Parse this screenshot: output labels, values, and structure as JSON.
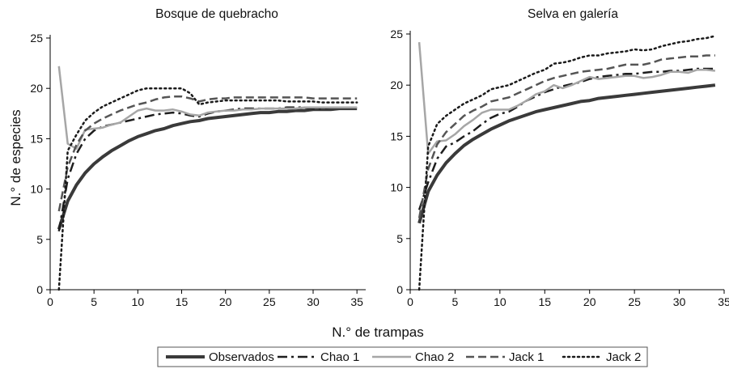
{
  "chart_data": {
    "type": "line",
    "xlabel": "N.° de trampas",
    "ylabel": "N.° de especies",
    "legend": {
      "placement": "bottom-center",
      "entries": [
        "Observados",
        "Chao 1",
        "Chao 2",
        "Jack 1",
        "Jack 2"
      ]
    },
    "grid": false,
    "series_styles": [
      {
        "name": "Observados",
        "color": "#3a3a3a",
        "dash": "solid",
        "weight": "thick"
      },
      {
        "name": "Chao 1",
        "color": "#1e1e1e",
        "dash": "dashdot",
        "weight": "medium"
      },
      {
        "name": "Chao 2",
        "color": "#a6a6a6",
        "dash": "solid",
        "weight": "medium"
      },
      {
        "name": "Jack 1",
        "color": "#555555",
        "dash": "dashed",
        "weight": "medium"
      },
      {
        "name": "Jack 2",
        "color": "#1a1a1a",
        "dash": "dotted",
        "weight": "medium"
      }
    ],
    "panels": [
      {
        "title": "Bosque de quebracho",
        "xlim": [
          0,
          36
        ],
        "ylim": [
          0,
          25
        ],
        "xticks": [
          0,
          5,
          10,
          15,
          20,
          25,
          30,
          35
        ],
        "yticks": [
          0,
          5,
          10,
          15,
          20,
          25
        ],
        "x": [
          1,
          2,
          3,
          4,
          5,
          6,
          7,
          8,
          9,
          10,
          11,
          12,
          13,
          14,
          15,
          16,
          17,
          18,
          19,
          20,
          21,
          22,
          23,
          24,
          25,
          26,
          27,
          28,
          29,
          30,
          31,
          32,
          33,
          34,
          35
        ],
        "series": [
          {
            "name": "Observados",
            "values": [
              6.0,
              8.8,
              10.4,
              11.6,
              12.5,
              13.2,
              13.8,
              14.3,
              14.8,
              15.2,
              15.5,
              15.8,
              16.0,
              16.3,
              16.5,
              16.7,
              16.8,
              17.0,
              17.1,
              17.2,
              17.3,
              17.4,
              17.5,
              17.6,
              17.6,
              17.7,
              17.7,
              17.8,
              17.8,
              17.9,
              17.9,
              17.9,
              18.0,
              18.0,
              18.0
            ]
          },
          {
            "name": "Chao 1",
            "values": [
              5.8,
              11.0,
              13.5,
              15.0,
              15.8,
              16.2,
              16.4,
              16.6,
              16.8,
              17.0,
              17.2,
              17.4,
              17.5,
              17.6,
              17.5,
              17.3,
              17.2,
              17.5,
              17.7,
              17.8,
              17.9,
              18.0,
              18.0,
              18.0,
              18.0,
              18.0,
              18.1,
              18.1,
              18.1,
              18.0,
              18.0,
              18.1,
              18.1,
              18.1,
              18.1
            ]
          },
          {
            "name": "Chao 2",
            "values": [
              22.2,
              14.5,
              14.0,
              15.9,
              16.0,
              16.1,
              16.4,
              16.6,
              17.2,
              17.8,
              18.0,
              17.8,
              17.8,
              17.9,
              17.7,
              17.4,
              17.3,
              17.6,
              17.7,
              17.8,
              17.8,
              17.9,
              17.9,
              18.0,
              18.0,
              18.0,
              18.0,
              18.0,
              18.1,
              18.1,
              18.1,
              18.1,
              18.1,
              18.1,
              18.1
            ]
          },
          {
            "name": "Jack 1",
            "values": [
              7.8,
              12.2,
              14.4,
              15.8,
              16.5,
              17.0,
              17.4,
              17.8,
              18.1,
              18.4,
              18.6,
              18.9,
              19.1,
              19.2,
              19.2,
              19.0,
              18.7,
              18.9,
              19.0,
              19.0,
              19.1,
              19.1,
              19.1,
              19.1,
              19.1,
              19.1,
              19.1,
              19.1,
              19.1,
              19.0,
              19.0,
              19.0,
              19.0,
              19.0,
              19.0
            ]
          },
          {
            "name": "Jack 2",
            "values": [
              0.0,
              13.8,
              15.4,
              16.8,
              17.6,
              18.2,
              18.6,
              19.0,
              19.4,
              19.8,
              20.0,
              20.0,
              20.0,
              20.0,
              20.0,
              19.5,
              18.4,
              18.6,
              18.7,
              18.8,
              18.8,
              18.8,
              18.8,
              18.8,
              18.8,
              18.8,
              18.7,
              18.7,
              18.7,
              18.7,
              18.6,
              18.6,
              18.6,
              18.6,
              18.6
            ]
          }
        ]
      },
      {
        "title": "Selva en galería",
        "xlim": [
          0,
          35
        ],
        "ylim": [
          0,
          25
        ],
        "xticks": [
          0,
          5,
          10,
          15,
          20,
          25,
          30,
          35
        ],
        "yticks": [
          0,
          5,
          10,
          15,
          20,
          25
        ],
        "x": [
          1,
          2,
          3,
          4,
          5,
          6,
          7,
          8,
          9,
          10,
          11,
          12,
          13,
          14,
          15,
          16,
          17,
          18,
          19,
          20,
          21,
          22,
          23,
          24,
          25,
          26,
          27,
          28,
          29,
          30,
          31,
          32,
          33,
          34
        ],
        "series": [
          {
            "name": "Observados",
            "values": [
              6.5,
              9.6,
              11.2,
              12.4,
              13.3,
              14.1,
              14.7,
              15.2,
              15.7,
              16.1,
              16.5,
              16.8,
              17.1,
              17.4,
              17.6,
              17.8,
              18.0,
              18.2,
              18.4,
              18.5,
              18.7,
              18.8,
              18.9,
              19.0,
              19.1,
              19.2,
              19.3,
              19.4,
              19.5,
              19.6,
              19.7,
              19.8,
              19.9,
              20.0
            ]
          },
          {
            "name": "Chao 1",
            "values": [
              7.8,
              10.5,
              12.8,
              14.0,
              14.4,
              15.0,
              15.5,
              16.2,
              16.8,
              17.2,
              17.4,
              17.9,
              18.5,
              18.9,
              19.3,
              19.6,
              19.9,
              20.1,
              20.3,
              20.6,
              20.8,
              20.9,
              21.0,
              21.1,
              21.1,
              21.2,
              21.3,
              21.3,
              21.4,
              21.4,
              21.5,
              21.6,
              21.6,
              21.6
            ]
          },
          {
            "name": "Chao 2",
            "values": [
              24.2,
              13.3,
              14.5,
              14.6,
              15.2,
              16.0,
              16.6,
              17.3,
              17.6,
              17.6,
              17.6,
              18.0,
              18.5,
              19.1,
              19.4,
              20.0,
              19.7,
              20.0,
              20.4,
              20.8,
              20.6,
              20.7,
              20.8,
              20.9,
              20.9,
              20.7,
              20.8,
              21.0,
              21.3,
              21.3,
              21.2,
              21.5,
              21.5,
              21.4
            ]
          },
          {
            "name": "Jack 1",
            "values": [
              7.0,
              11.8,
              14.2,
              15.4,
              16.2,
              17.0,
              17.5,
              17.9,
              18.4,
              18.6,
              18.8,
              19.2,
              19.6,
              20.0,
              20.4,
              20.7,
              20.9,
              21.1,
              21.3,
              21.4,
              21.5,
              21.6,
              21.8,
              22.0,
              22.0,
              22.0,
              22.2,
              22.5,
              22.6,
              22.7,
              22.8,
              22.8,
              22.9,
              22.9
            ]
          },
          {
            "name": "Jack 2",
            "values": [
              0.0,
              14.0,
              16.2,
              17.0,
              17.6,
              18.2,
              18.6,
              19.0,
              19.6,
              19.8,
              20.0,
              20.4,
              20.8,
              21.2,
              21.5,
              22.1,
              22.2,
              22.4,
              22.7,
              22.9,
              22.9,
              23.1,
              23.2,
              23.3,
              23.5,
              23.4,
              23.5,
              23.8,
              24.0,
              24.2,
              24.3,
              24.5,
              24.6,
              24.8
            ]
          }
        ]
      }
    ]
  }
}
